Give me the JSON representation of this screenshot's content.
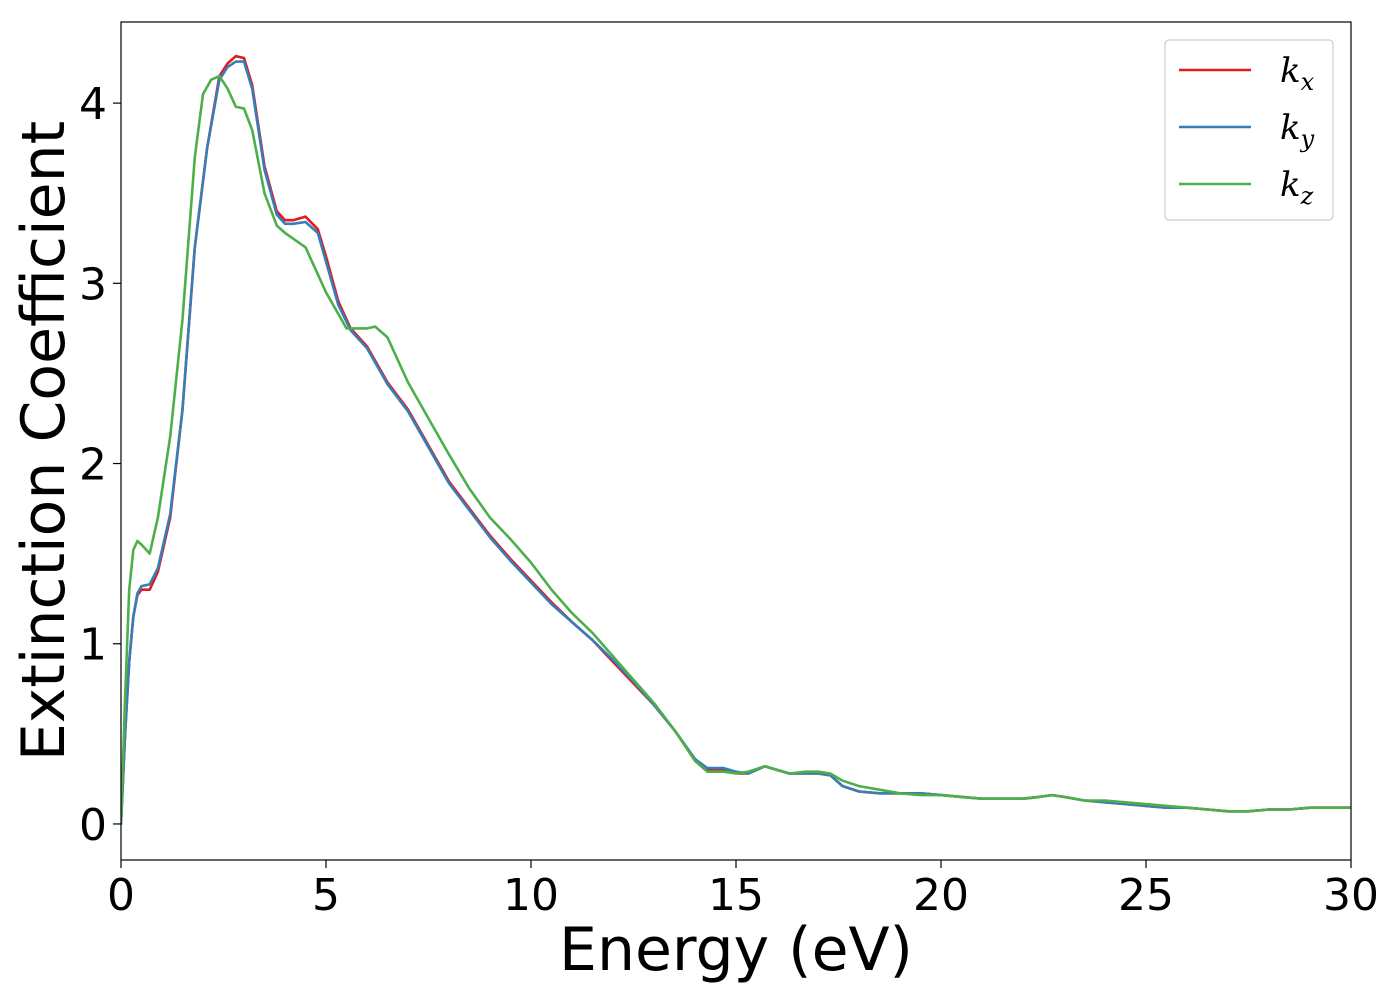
{
  "chart_data": {
    "type": "line",
    "xlabel": "Energy (eV)",
    "ylabel": "Extinction Coefficient",
    "xlim": [
      0,
      30
    ],
    "ylim": [
      -0.2,
      4.45
    ],
    "xticks": [
      0,
      5,
      10,
      15,
      20,
      25,
      30
    ],
    "yticks": [
      0,
      1,
      2,
      3,
      4
    ],
    "grid": false,
    "legend_position": "top-right",
    "series": [
      {
        "name": "k_x",
        "legend_base": "k",
        "legend_sub": "x",
        "color": "#e41a1c",
        "x": [
          0,
          0.1,
          0.2,
          0.3,
          0.4,
          0.5,
          0.7,
          0.9,
          1.2,
          1.5,
          1.8,
          2.1,
          2.4,
          2.6,
          2.8,
          3.0,
          3.2,
          3.5,
          3.8,
          4.0,
          4.2,
          4.5,
          4.8,
          5.0,
          5.3,
          5.6,
          6.0,
          6.5,
          7.0,
          7.5,
          8.0,
          8.5,
          9.0,
          9.5,
          10.0,
          10.5,
          11.0,
          11.5,
          12.0,
          12.5,
          13.0,
          13.5,
          14.0,
          14.3,
          14.7,
          15.0,
          15.3,
          15.7,
          16.0,
          16.3,
          16.7,
          17.0,
          17.3,
          17.6,
          18.0,
          18.5,
          19.0,
          19.5,
          20.0,
          20.5,
          21.0,
          21.5,
          22.0,
          22.4,
          22.7,
          23.0,
          23.5,
          24.0,
          24.5,
          25.0,
          25.5,
          26.0,
          26.5,
          27.0,
          27.5,
          28.0,
          28.5,
          29.0,
          29.5,
          30.0
        ],
        "y": [
          0,
          0.5,
          0.9,
          1.15,
          1.27,
          1.3,
          1.3,
          1.4,
          1.7,
          2.3,
          3.2,
          3.75,
          4.15,
          4.22,
          4.26,
          4.25,
          4.1,
          3.65,
          3.4,
          3.35,
          3.35,
          3.37,
          3.3,
          3.15,
          2.9,
          2.75,
          2.65,
          2.45,
          2.3,
          2.1,
          1.9,
          1.75,
          1.6,
          1.47,
          1.35,
          1.23,
          1.12,
          1.02,
          0.9,
          0.78,
          0.66,
          0.52,
          0.36,
          0.3,
          0.3,
          0.28,
          0.28,
          0.32,
          0.3,
          0.28,
          0.28,
          0.28,
          0.27,
          0.21,
          0.18,
          0.17,
          0.17,
          0.17,
          0.16,
          0.15,
          0.14,
          0.14,
          0.14,
          0.15,
          0.16,
          0.15,
          0.13,
          0.12,
          0.11,
          0.1,
          0.09,
          0.09,
          0.08,
          0.07,
          0.07,
          0.08,
          0.08,
          0.09,
          0.09,
          0.09
        ]
      },
      {
        "name": "k_y",
        "legend_base": "k",
        "legend_sub": "y",
        "color": "#377eb8",
        "x": [
          0,
          0.1,
          0.2,
          0.3,
          0.4,
          0.5,
          0.7,
          0.9,
          1.2,
          1.5,
          1.8,
          2.1,
          2.4,
          2.6,
          2.8,
          3.0,
          3.2,
          3.5,
          3.8,
          4.0,
          4.2,
          4.5,
          4.8,
          5.0,
          5.3,
          5.6,
          6.0,
          6.5,
          7.0,
          7.5,
          8.0,
          8.5,
          9.0,
          9.5,
          10.0,
          10.5,
          11.0,
          11.5,
          12.0,
          12.5,
          13.0,
          13.5,
          14.0,
          14.3,
          14.7,
          15.0,
          15.3,
          15.7,
          16.0,
          16.3,
          16.7,
          17.0,
          17.3,
          17.6,
          18.0,
          18.5,
          19.0,
          19.5,
          20.0,
          20.5,
          21.0,
          21.5,
          22.0,
          22.4,
          22.7,
          23.0,
          23.5,
          24.0,
          24.5,
          25.0,
          25.5,
          26.0,
          26.5,
          27.0,
          27.5,
          28.0,
          28.5,
          29.0,
          29.5,
          30.0
        ],
        "y": [
          0,
          0.5,
          0.9,
          1.15,
          1.28,
          1.32,
          1.33,
          1.42,
          1.72,
          2.3,
          3.2,
          3.75,
          4.13,
          4.2,
          4.23,
          4.23,
          4.08,
          3.63,
          3.38,
          3.33,
          3.33,
          3.34,
          3.28,
          3.12,
          2.88,
          2.74,
          2.64,
          2.44,
          2.29,
          2.09,
          1.89,
          1.74,
          1.59,
          1.46,
          1.34,
          1.22,
          1.12,
          1.02,
          0.91,
          0.79,
          0.66,
          0.52,
          0.36,
          0.31,
          0.31,
          0.29,
          0.28,
          0.32,
          0.3,
          0.28,
          0.28,
          0.28,
          0.27,
          0.21,
          0.18,
          0.17,
          0.17,
          0.17,
          0.16,
          0.15,
          0.14,
          0.14,
          0.14,
          0.15,
          0.16,
          0.15,
          0.13,
          0.12,
          0.11,
          0.1,
          0.09,
          0.09,
          0.08,
          0.07,
          0.07,
          0.08,
          0.08,
          0.09,
          0.09,
          0.09
        ]
      },
      {
        "name": "k_z",
        "legend_base": "k",
        "legend_sub": "z",
        "color": "#4daf4a",
        "x": [
          0,
          0.1,
          0.2,
          0.3,
          0.4,
          0.5,
          0.7,
          0.9,
          1.2,
          1.5,
          1.8,
          2.0,
          2.2,
          2.4,
          2.6,
          2.8,
          3.0,
          3.2,
          3.5,
          3.8,
          4.0,
          4.5,
          5.0,
          5.5,
          6.0,
          6.2,
          6.5,
          7.0,
          7.5,
          8.0,
          8.5,
          9.0,
          9.5,
          10.0,
          10.5,
          11.0,
          11.5,
          12.0,
          12.5,
          13.0,
          13.5,
          14.0,
          14.3,
          14.7,
          15.0,
          15.3,
          15.7,
          16.0,
          16.3,
          16.7,
          17.0,
          17.3,
          17.6,
          18.0,
          18.5,
          19.0,
          19.5,
          20.0,
          20.5,
          21.0,
          21.5,
          22.0,
          22.4,
          22.7,
          23.0,
          23.5,
          24.0,
          24.5,
          25.0,
          25.5,
          26.0,
          26.5,
          27.0,
          27.5,
          28.0,
          28.5,
          29.0,
          29.5,
          30.0
        ],
        "y": [
          0,
          0.7,
          1.3,
          1.52,
          1.57,
          1.55,
          1.5,
          1.7,
          2.15,
          2.8,
          3.7,
          4.05,
          4.13,
          4.15,
          4.08,
          3.98,
          3.97,
          3.85,
          3.5,
          3.32,
          3.28,
          3.2,
          2.95,
          2.75,
          2.75,
          2.76,
          2.7,
          2.45,
          2.25,
          2.05,
          1.86,
          1.7,
          1.58,
          1.45,
          1.3,
          1.17,
          1.06,
          0.93,
          0.8,
          0.67,
          0.52,
          0.35,
          0.29,
          0.29,
          0.28,
          0.29,
          0.32,
          0.3,
          0.28,
          0.29,
          0.29,
          0.28,
          0.24,
          0.21,
          0.19,
          0.17,
          0.16,
          0.16,
          0.15,
          0.14,
          0.14,
          0.14,
          0.15,
          0.16,
          0.15,
          0.13,
          0.13,
          0.12,
          0.11,
          0.1,
          0.09,
          0.08,
          0.07,
          0.07,
          0.08,
          0.08,
          0.09,
          0.09,
          0.09
        ]
      }
    ]
  }
}
